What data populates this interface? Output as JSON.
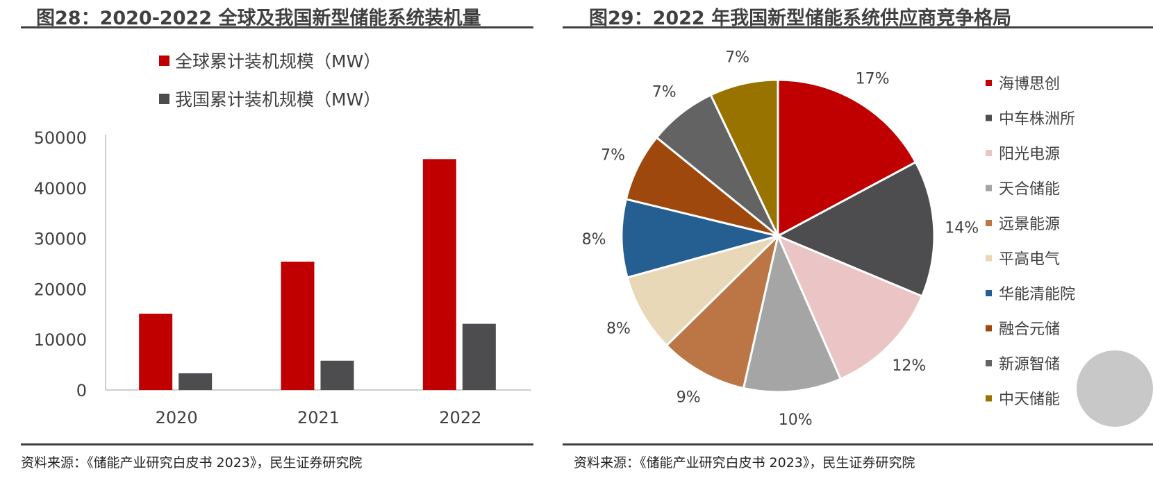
{
  "left": {
    "title": "图28：2020-2022 全球及我国新型储能系统装机量",
    "source": "资料来源：《储能产业研究白皮书 2023》，民生证券研究院"
  },
  "right": {
    "title": "图29：2022 年我国新型储能系统供应商竞争格局",
    "source": "资料来源：《储能产业研究白皮书 2023》，民生证券研究院"
  },
  "chart_data": [
    {
      "type": "bar",
      "categories": [
        "2020",
        "2021",
        "2022"
      ],
      "series": [
        {
          "name": "全球累计装机规模（MW）",
          "color": "#C00000",
          "values": [
            15100,
            25400,
            45700
          ]
        },
        {
          "name": "我国累计装机规模（MW）",
          "color": "#4D4D4F",
          "values": [
            3300,
            5800,
            13100
          ]
        }
      ],
      "ylim": [
        0,
        50000
      ],
      "yticks": [
        "0",
        "10000",
        "20000",
        "30000",
        "40000",
        "50000"
      ],
      "grid": false,
      "legend": "top-left"
    },
    {
      "type": "pie",
      "labels": [
        "海博思创",
        "中车株洲所",
        "阳光电源",
        "天合储能",
        "远景能源",
        "平高电气",
        "华能清能院",
        "融合元储",
        "新源智储",
        "中天储能"
      ],
      "values": [
        17,
        14,
        12,
        10,
        9,
        8,
        8,
        7,
        7,
        7
      ],
      "value_labels": [
        "17%",
        "14%",
        "12%",
        "10%",
        "9%",
        "8%",
        "8%",
        "7%",
        "7%",
        "7%"
      ],
      "colors": [
        "#C00000",
        "#4D4D4F",
        "#EBC5C6",
        "#A5A5A5",
        "#BC7544",
        "#E8D8B8",
        "#255E91",
        "#9E480E",
        "#636363",
        "#997300"
      ],
      "legend": "right"
    }
  ]
}
